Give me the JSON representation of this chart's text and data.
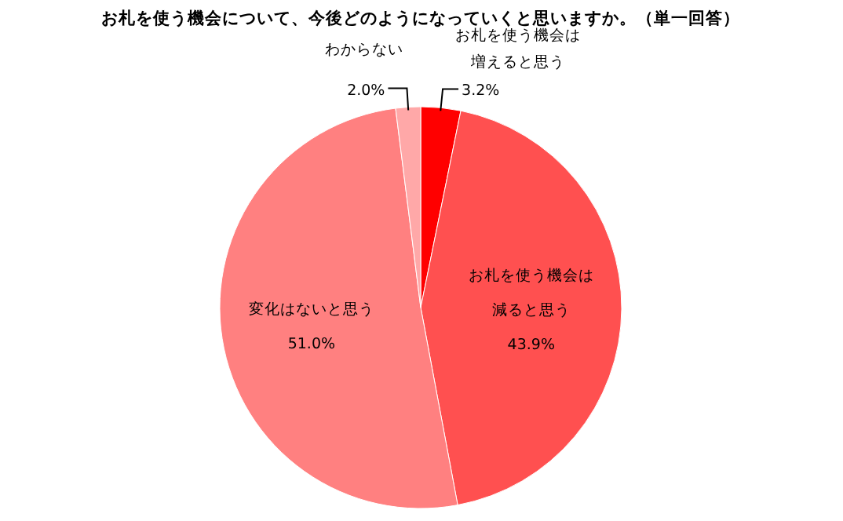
{
  "chart_data": {
    "type": "pie",
    "title": "お札を使う機会について、今後どのようになっていくと思いますか。（単一回答）",
    "categories": [
      "お札を使う機会は増えると思う",
      "お札を使う機会は減ると思う",
      "変化はないと思う",
      "わからない"
    ],
    "values": [
      3.2,
      43.9,
      51.0,
      2.0
    ],
    "value_labels": [
      "3.2%",
      "43.9%",
      "51.0%",
      "2.0%"
    ],
    "colors": [
      "#ff0000",
      "#ff5050",
      "#ff8080",
      "#ffa8a8"
    ],
    "legend": false
  }
}
